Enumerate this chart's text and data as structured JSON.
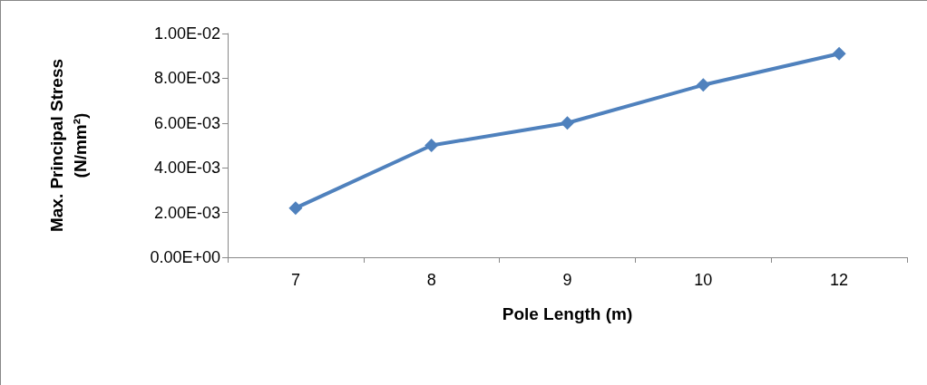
{
  "chart_data": {
    "type": "line",
    "xlabel": "Pole Length (m)",
    "ylabel": "Max. Principal Stress\n(N/mm²)",
    "categories": [
      "7",
      "8",
      "9",
      "10",
      "12"
    ],
    "series": [
      {
        "color": "#4f81bd",
        "values": [
          0.0022,
          0.005,
          0.006,
          0.0077,
          0.0091
        ]
      }
    ],
    "ylim": [
      0,
      0.01
    ],
    "yticks": [
      {
        "value": 0,
        "label": "0.00E+00"
      },
      {
        "value": 0.002,
        "label": "2.00E-03"
      },
      {
        "value": 0.004,
        "label": "4.00E-03"
      },
      {
        "value": 0.006,
        "label": "6.00E-03"
      },
      {
        "value": 0.008,
        "label": "8.00E-03"
      },
      {
        "value": 0.01,
        "label": "1.00E-02"
      }
    ],
    "grid": false,
    "marker": "diamond",
    "line_style": "solid"
  }
}
